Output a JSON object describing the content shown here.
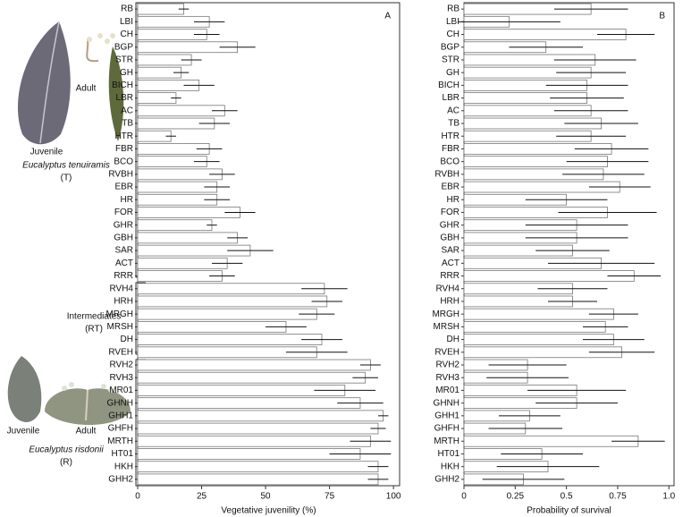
{
  "groups": [
    {
      "name": "Eucalyptus tenuiramis",
      "code": "(T)",
      "juvenile": "Juvenile",
      "adult": "Adult"
    },
    {
      "name": "Intermediates",
      "code": "(RT)"
    },
    {
      "name": "Eucalyptus risdonii",
      "code": "(R)",
      "juvenile": "Juvenile",
      "adult": "Adult"
    }
  ],
  "chart_data": [
    {
      "type": "bar",
      "orientation": "horizontal",
      "panel": "A",
      "xlabel": "Vegetative juvenility (%)",
      "color": "#ffffff",
      "categories": [
        "RB",
        "LBI",
        "CH",
        "BGP",
        "STR",
        "GH",
        "BICH",
        "LBR",
        "AC",
        "TB",
        "HTR",
        "FBR",
        "BCO",
        "RVBH",
        "EBR",
        "HR",
        "FOR",
        "GHR",
        "GBH",
        "SAR",
        "ACT",
        "RRR",
        "RVH4",
        "HRH",
        "MRGH",
        "MRSH",
        "DH",
        "RVEH",
        "RVH2",
        "RVH3",
        "MR01",
        "GHNH",
        "GHH1",
        "GHFH",
        "MRTH",
        "HT01",
        "HKH",
        "GHH2"
      ],
      "values": [
        18,
        28,
        27,
        39,
        21,
        17,
        24,
        15,
        34,
        30,
        13,
        28,
        27,
        33,
        31,
        31,
        40,
        29,
        39,
        44,
        35,
        33,
        73,
        74,
        70,
        58,
        72,
        70,
        91,
        89,
        81,
        87,
        96,
        94,
        91,
        87,
        94,
        94
      ],
      "errors": [
        2,
        6,
        5,
        7,
        4,
        3,
        6,
        2,
        5,
        6,
        2,
        5,
        5,
        5,
        5,
        5,
        6,
        2,
        4,
        9,
        6,
        5,
        9,
        6,
        7,
        8,
        8,
        12,
        4,
        5,
        12,
        9,
        2,
        3,
        8,
        12,
        4,
        4
      ],
      "xlim": [
        0,
        102.4
      ],
      "xticks": [
        0,
        25,
        50,
        75,
        100
      ]
    },
    {
      "type": "bar",
      "orientation": "horizontal",
      "panel": "B",
      "xlabel": "Probability of survival",
      "color": "#ffffff",
      "categories": [
        "RB",
        "LBI",
        "CH",
        "BGP",
        "STR",
        "GH",
        "BICH",
        "LBR",
        "AC",
        "TB",
        "HTR",
        "FBR",
        "BCO",
        "RVBH",
        "EBR",
        "HR",
        "FOR",
        "GHR",
        "GBH",
        "SAR",
        "ACT",
        "RRR",
        "RVH4",
        "HRH",
        "MRGH",
        "MRSH",
        "DH",
        "RVEH",
        "RVH2",
        "RVH3",
        "MR01",
        "GHNH",
        "GHH1",
        "GHFH",
        "MRTH",
        "HT01",
        "HKH",
        "GHH2"
      ],
      "values": [
        0.62,
        0.22,
        0.79,
        0.4,
        0.64,
        0.62,
        0.6,
        0.6,
        0.62,
        0.67,
        0.62,
        0.72,
        0.7,
        0.68,
        0.76,
        0.5,
        0.7,
        0.55,
        0.55,
        0.53,
        0.67,
        0.83,
        0.53,
        0.53,
        0.73,
        0.69,
        0.73,
        0.77,
        0.31,
        0.31,
        0.55,
        0.55,
        0.32,
        0.3,
        0.85,
        0.38,
        0.41,
        0.29
      ],
      "errors": [
        0.18,
        0.25,
        0.14,
        0.18,
        0.2,
        0.17,
        0.2,
        0.18,
        0.18,
        0.18,
        0.17,
        0.18,
        0.2,
        0.2,
        0.15,
        0.2,
        0.24,
        0.25,
        0.25,
        0.18,
        0.26,
        0.13,
        0.17,
        0.12,
        0.12,
        0.11,
        0.15,
        0.16,
        0.19,
        0.2,
        0.24,
        0.2,
        0.15,
        0.18,
        0.13,
        0.2,
        0.25,
        0.2
      ],
      "xlim": [
        0,
        1.025
      ],
      "xticks": [
        0,
        0.25,
        0.5,
        0.75,
        {
          "value": 1,
          "label": "1.0"
        }
      ]
    }
  ]
}
